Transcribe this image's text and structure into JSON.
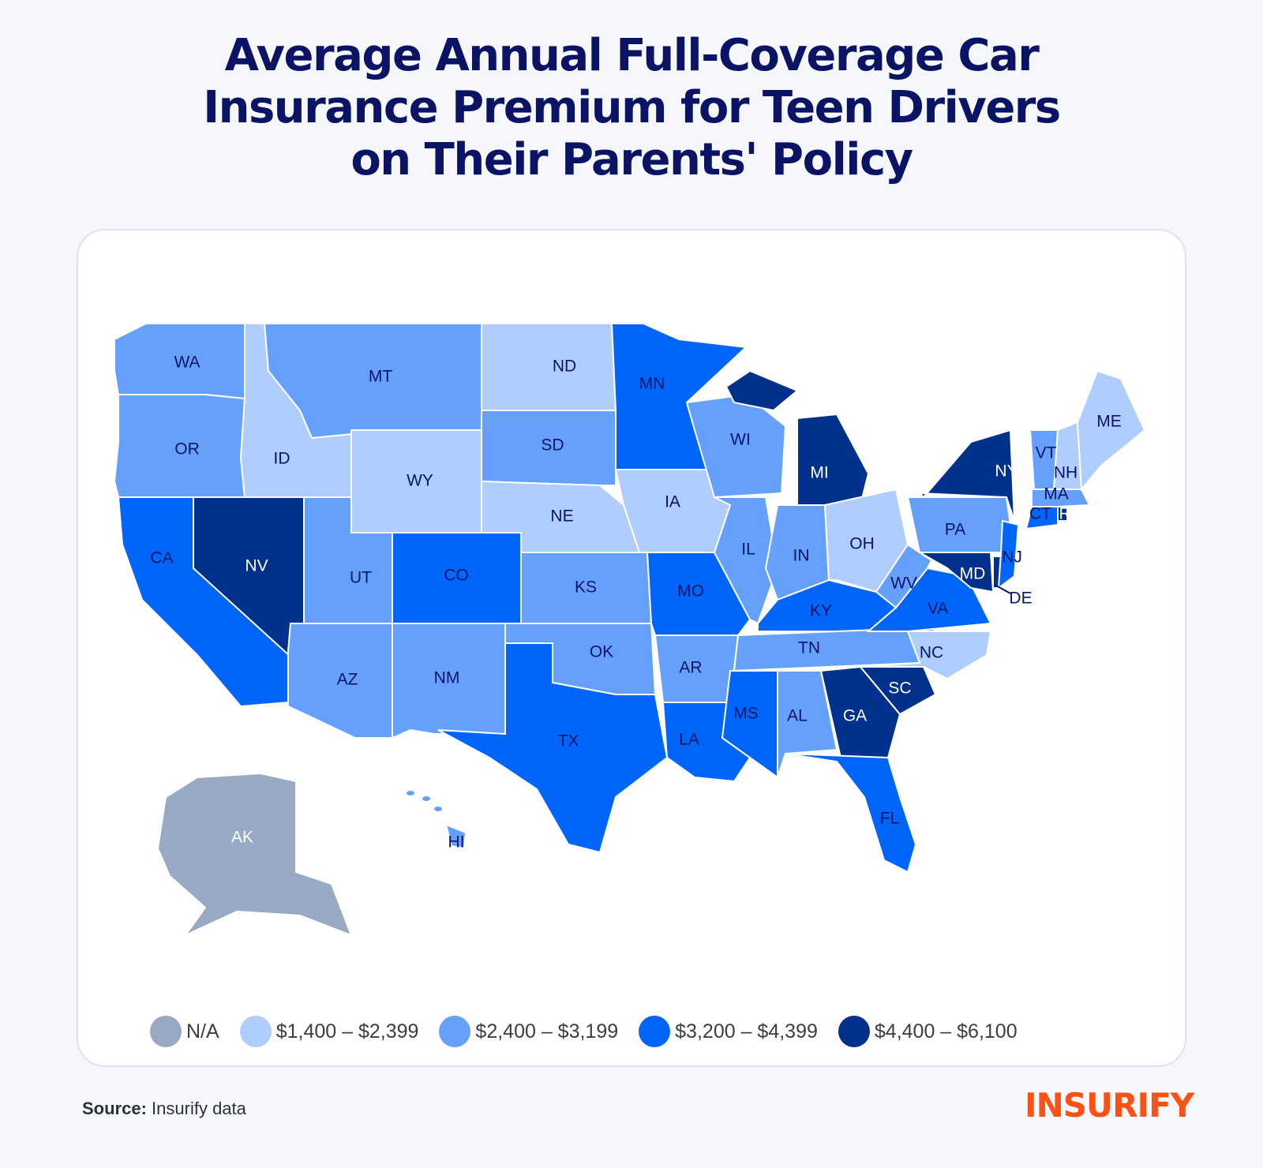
{
  "title": {
    "line1": "Average Annual Full-Coverage Car",
    "line2": "Insurance Premium for Teen Drivers",
    "line3": "on Their Parents' Policy"
  },
  "colors": {
    "na": "#98a9c3",
    "tier1": "#afcdfe",
    "tier2": "#65a1fc",
    "tier3": "#0065fb",
    "tier4": "#01318c",
    "label_dark": "#0b1464",
    "label_light": "#ffffff",
    "brand": "#fd5013"
  },
  "legend": [
    {
      "tier": "na",
      "label": "N/A"
    },
    {
      "tier": "tier1",
      "label": "$1,400 – $2,399"
    },
    {
      "tier": "tier2",
      "label": "$2,400 – $3,199"
    },
    {
      "tier": "tier3",
      "label": "$3,200 – $4,399"
    },
    {
      "tier": "tier4",
      "label": "$4,400 – $6,100"
    }
  ],
  "chart_data": {
    "type": "choropleth",
    "title": "Average Annual Full-Coverage Car Insurance Premium for Teen Drivers on Their Parents' Policy",
    "legend_placement": "bottom",
    "bins": [
      {
        "tier": "na",
        "label": "N/A"
      },
      {
        "tier": "tier1",
        "min": 1400,
        "max": 2399
      },
      {
        "tier": "tier2",
        "min": 2400,
        "max": 3199
      },
      {
        "tier": "tier3",
        "min": 3200,
        "max": 4399
      },
      {
        "tier": "tier4",
        "min": 4400,
        "max": 6100
      }
    ],
    "states": {
      "AK": "na",
      "ND": "tier1",
      "ID": "tier1",
      "WY": "tier1",
      "NE": "tier1",
      "IA": "tier1",
      "OH": "tier1",
      "NC": "tier1",
      "ME": "tier1",
      "NH": "tier1",
      "WA": "tier2",
      "OR": "tier2",
      "MT": "tier2",
      "SD": "tier2",
      "UT": "tier2",
      "AZ": "tier2",
      "NM": "tier2",
      "KS": "tier2",
      "OK": "tier2",
      "WI": "tier2",
      "IL": "tier2",
      "IN": "tier2",
      "AR": "tier2",
      "TN": "tier2",
      "AL": "tier2",
      "WV": "tier2",
      "PA": "tier2",
      "VT": "tier2",
      "MA": "tier2",
      "HI": "tier2",
      "CA": "tier3",
      "CO": "tier3",
      "TX": "tier3",
      "MN": "tier3",
      "MO": "tier3",
      "LA": "tier3",
      "MS": "tier3",
      "KY": "tier3",
      "VA": "tier3",
      "FL": "tier3",
      "NJ": "tier3",
      "CT": "tier3",
      "NV": "tier4",
      "MI": "tier4",
      "GA": "tier4",
      "SC": "tier4",
      "NY": "tier4",
      "MD": "tier4",
      "DE": "tier4",
      "RI": "tier4"
    }
  },
  "footer": {
    "source_label": "Source:",
    "source_text": "Insurify data",
    "brand": "INSURIFY"
  }
}
